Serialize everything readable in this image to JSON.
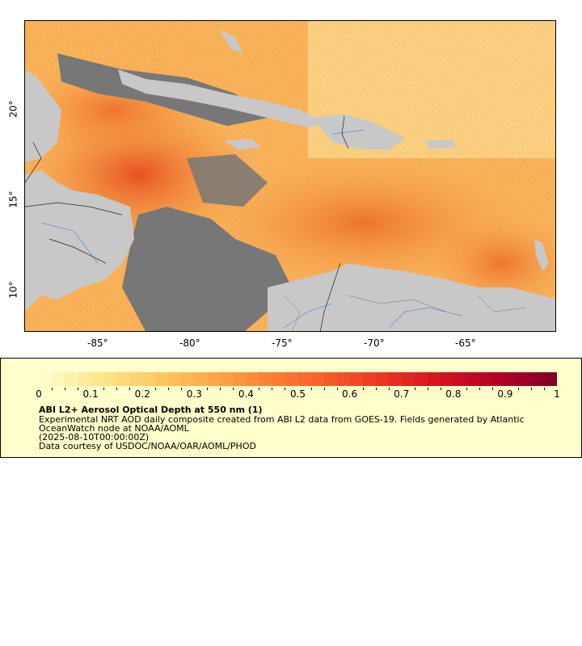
{
  "map": {
    "type": "raster-map",
    "lon_ticks": [
      "-85°",
      "-80°",
      "-75°",
      "-70°",
      "-65°"
    ],
    "lat_ticks": [
      "20°",
      "15°",
      "10°"
    ],
    "land_color": "#c8c8c8",
    "missing_data_color": "#777777"
  },
  "colorbar": {
    "min": 0,
    "max": 1,
    "tick_labels": [
      "0",
      "0.1",
      "0.2",
      "0.3",
      "0.4",
      "0.5",
      "0.6",
      "0.7",
      "0.8",
      "0.9",
      "1"
    ],
    "colors": [
      "#ffffcc",
      "#fee690",
      "#fdcb64",
      "#fda84a",
      "#fc8035",
      "#f85c2a",
      "#ea3421",
      "#d41121",
      "#b10026",
      "#800026"
    ]
  },
  "legend": {
    "title": "ABI L2+ Aerosol Optical Depth at 550 nm (1)",
    "description": "Experimental NRT AOD daily composite created from ABI L2 data from GOES-19. Fields generated by Atlantic OceanWatch node at NOAA/AOML",
    "date": "(2025-08-10T00:00:00Z)",
    "credit": "Data courtesy of USDOC/NOAA/OAR/AOML/PHOD"
  }
}
